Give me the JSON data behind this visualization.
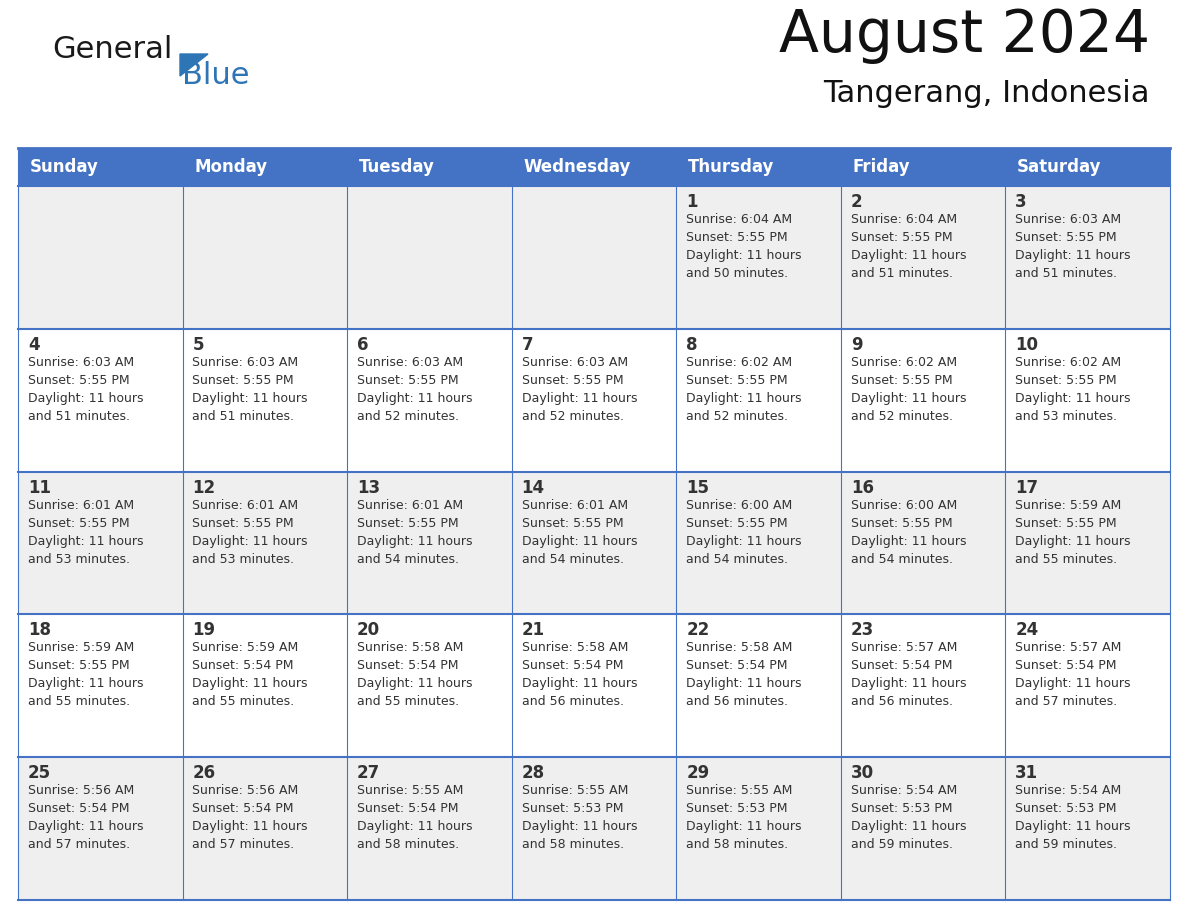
{
  "title": "August 2024",
  "subtitle": "Tangerang, Indonesia",
  "days_of_week": [
    "Sunday",
    "Monday",
    "Tuesday",
    "Wednesday",
    "Thursday",
    "Friday",
    "Saturday"
  ],
  "header_bg": "#4472C4",
  "header_text_color": "#FFFFFF",
  "row_bg_odd": "#EFEFEF",
  "row_bg_even": "#FFFFFF",
  "cell_border_color": "#4472C4",
  "day_num_color": "#333333",
  "cell_text_color": "#333333",
  "logo_general_color": "#1a1a1a",
  "logo_blue_color": "#2E75B6",
  "logo_triangle_color": "#2E75B6",
  "weeks": [
    {
      "days": [
        {
          "date": "",
          "sunrise": "",
          "sunset": "",
          "daylight_h": "",
          "daylight_m": ""
        },
        {
          "date": "",
          "sunrise": "",
          "sunset": "",
          "daylight_h": "",
          "daylight_m": ""
        },
        {
          "date": "",
          "sunrise": "",
          "sunset": "",
          "daylight_h": "",
          "daylight_m": ""
        },
        {
          "date": "",
          "sunrise": "",
          "sunset": "",
          "daylight_h": "",
          "daylight_m": ""
        },
        {
          "date": "1",
          "sunrise": "6:04 AM",
          "sunset": "5:55 PM",
          "daylight_h": "11 hours",
          "daylight_m": "and 50 minutes."
        },
        {
          "date": "2",
          "sunrise": "6:04 AM",
          "sunset": "5:55 PM",
          "daylight_h": "11 hours",
          "daylight_m": "and 51 minutes."
        },
        {
          "date": "3",
          "sunrise": "6:03 AM",
          "sunset": "5:55 PM",
          "daylight_h": "11 hours",
          "daylight_m": "and 51 minutes."
        }
      ]
    },
    {
      "days": [
        {
          "date": "4",
          "sunrise": "6:03 AM",
          "sunset": "5:55 PM",
          "daylight_h": "11 hours",
          "daylight_m": "and 51 minutes."
        },
        {
          "date": "5",
          "sunrise": "6:03 AM",
          "sunset": "5:55 PM",
          "daylight_h": "11 hours",
          "daylight_m": "and 51 minutes."
        },
        {
          "date": "6",
          "sunrise": "6:03 AM",
          "sunset": "5:55 PM",
          "daylight_h": "11 hours",
          "daylight_m": "and 52 minutes."
        },
        {
          "date": "7",
          "sunrise": "6:03 AM",
          "sunset": "5:55 PM",
          "daylight_h": "11 hours",
          "daylight_m": "and 52 minutes."
        },
        {
          "date": "8",
          "sunrise": "6:02 AM",
          "sunset": "5:55 PM",
          "daylight_h": "11 hours",
          "daylight_m": "and 52 minutes."
        },
        {
          "date": "9",
          "sunrise": "6:02 AM",
          "sunset": "5:55 PM",
          "daylight_h": "11 hours",
          "daylight_m": "and 52 minutes."
        },
        {
          "date": "10",
          "sunrise": "6:02 AM",
          "sunset": "5:55 PM",
          "daylight_h": "11 hours",
          "daylight_m": "and 53 minutes."
        }
      ]
    },
    {
      "days": [
        {
          "date": "11",
          "sunrise": "6:01 AM",
          "sunset": "5:55 PM",
          "daylight_h": "11 hours",
          "daylight_m": "and 53 minutes."
        },
        {
          "date": "12",
          "sunrise": "6:01 AM",
          "sunset": "5:55 PM",
          "daylight_h": "11 hours",
          "daylight_m": "and 53 minutes."
        },
        {
          "date": "13",
          "sunrise": "6:01 AM",
          "sunset": "5:55 PM",
          "daylight_h": "11 hours",
          "daylight_m": "and 54 minutes."
        },
        {
          "date": "14",
          "sunrise": "6:01 AM",
          "sunset": "5:55 PM",
          "daylight_h": "11 hours",
          "daylight_m": "and 54 minutes."
        },
        {
          "date": "15",
          "sunrise": "6:00 AM",
          "sunset": "5:55 PM",
          "daylight_h": "11 hours",
          "daylight_m": "and 54 minutes."
        },
        {
          "date": "16",
          "sunrise": "6:00 AM",
          "sunset": "5:55 PM",
          "daylight_h": "11 hours",
          "daylight_m": "and 54 minutes."
        },
        {
          "date": "17",
          "sunrise": "5:59 AM",
          "sunset": "5:55 PM",
          "daylight_h": "11 hours",
          "daylight_m": "and 55 minutes."
        }
      ]
    },
    {
      "days": [
        {
          "date": "18",
          "sunrise": "5:59 AM",
          "sunset": "5:55 PM",
          "daylight_h": "11 hours",
          "daylight_m": "and 55 minutes."
        },
        {
          "date": "19",
          "sunrise": "5:59 AM",
          "sunset": "5:54 PM",
          "daylight_h": "11 hours",
          "daylight_m": "and 55 minutes."
        },
        {
          "date": "20",
          "sunrise": "5:58 AM",
          "sunset": "5:54 PM",
          "daylight_h": "11 hours",
          "daylight_m": "and 55 minutes."
        },
        {
          "date": "21",
          "sunrise": "5:58 AM",
          "sunset": "5:54 PM",
          "daylight_h": "11 hours",
          "daylight_m": "and 56 minutes."
        },
        {
          "date": "22",
          "sunrise": "5:58 AM",
          "sunset": "5:54 PM",
          "daylight_h": "11 hours",
          "daylight_m": "and 56 minutes."
        },
        {
          "date": "23",
          "sunrise": "5:57 AM",
          "sunset": "5:54 PM",
          "daylight_h": "11 hours",
          "daylight_m": "and 56 minutes."
        },
        {
          "date": "24",
          "sunrise": "5:57 AM",
          "sunset": "5:54 PM",
          "daylight_h": "11 hours",
          "daylight_m": "and 57 minutes."
        }
      ]
    },
    {
      "days": [
        {
          "date": "25",
          "sunrise": "5:56 AM",
          "sunset": "5:54 PM",
          "daylight_h": "11 hours",
          "daylight_m": "and 57 minutes."
        },
        {
          "date": "26",
          "sunrise": "5:56 AM",
          "sunset": "5:54 PM",
          "daylight_h": "11 hours",
          "daylight_m": "and 57 minutes."
        },
        {
          "date": "27",
          "sunrise": "5:55 AM",
          "sunset": "5:54 PM",
          "daylight_h": "11 hours",
          "daylight_m": "and 58 minutes."
        },
        {
          "date": "28",
          "sunrise": "5:55 AM",
          "sunset": "5:53 PM",
          "daylight_h": "11 hours",
          "daylight_m": "and 58 minutes."
        },
        {
          "date": "29",
          "sunrise": "5:55 AM",
          "sunset": "5:53 PM",
          "daylight_h": "11 hours",
          "daylight_m": "and 58 minutes."
        },
        {
          "date": "30",
          "sunrise": "5:54 AM",
          "sunset": "5:53 PM",
          "daylight_h": "11 hours",
          "daylight_m": "and 59 minutes."
        },
        {
          "date": "31",
          "sunrise": "5:54 AM",
          "sunset": "5:53 PM",
          "daylight_h": "11 hours",
          "daylight_m": "and 59 minutes."
        }
      ]
    }
  ]
}
